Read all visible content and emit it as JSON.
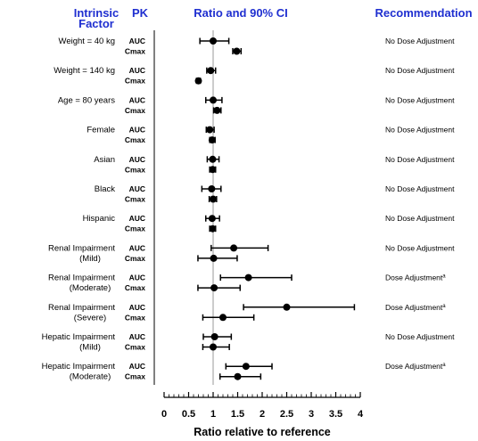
{
  "chart_data": {
    "type": "forest",
    "headers": {
      "factor": "Intrinsic Factor",
      "pk": "PK",
      "ratio": "Ratio and 90% CI",
      "recommendation": "Recommendation"
    },
    "xlabel": "Ratio relative to reference",
    "xlim": [
      0,
      4
    ],
    "xticks": [
      "0",
      "0.5",
      "1",
      "1.5",
      "2",
      "2.5",
      "3",
      "3.5",
      "4"
    ],
    "reference_line": 1,
    "rows": [
      {
        "factor": [
          "Weight = 40 kg"
        ],
        "recommendation": "No Dose Adjustment",
        "rec_mark": "",
        "pk": [
          {
            "param": "AUC",
            "ratio": 1.0,
            "ci": [
              0.73,
              1.32
            ]
          },
          {
            "param": "Cmax",
            "ratio": 1.48,
            "ci": [
              1.4,
              1.57
            ]
          }
        ]
      },
      {
        "factor": [
          "Weight = 140 kg"
        ],
        "recommendation": "No Dose Adjustment",
        "rec_mark": "",
        "pk": [
          {
            "param": "AUC",
            "ratio": 0.95,
            "ci": [
              0.87,
              1.05
            ]
          },
          {
            "param": "Cmax",
            "ratio": 0.7,
            "ci": [
              0.66,
              0.74
            ]
          }
        ]
      },
      {
        "factor": [
          "Age = 80 years"
        ],
        "recommendation": "No Dose Adjustment",
        "rec_mark": "",
        "pk": [
          {
            "param": "AUC",
            "ratio": 1.0,
            "ci": [
              0.85,
              1.18
            ]
          },
          {
            "param": "Cmax",
            "ratio": 1.08,
            "ci": [
              1.01,
              1.16
            ]
          }
        ]
      },
      {
        "factor": [
          "Female"
        ],
        "recommendation": "No Dose Adjustment",
        "rec_mark": "",
        "pk": [
          {
            "param": "AUC",
            "ratio": 0.93,
            "ci": [
              0.86,
              1.02
            ]
          },
          {
            "param": "Cmax",
            "ratio": 0.98,
            "ci": [
              0.93,
              1.04
            ]
          }
        ]
      },
      {
        "factor": [
          "Asian"
        ],
        "recommendation": "No Dose Adjustment",
        "rec_mark": "",
        "pk": [
          {
            "param": "AUC",
            "ratio": 0.99,
            "ci": [
              0.88,
              1.12
            ]
          },
          {
            "param": "Cmax",
            "ratio": 0.99,
            "ci": [
              0.93,
              1.05
            ]
          }
        ]
      },
      {
        "factor": [
          "Black"
        ],
        "recommendation": "No Dose Adjustment",
        "rec_mark": "",
        "pk": [
          {
            "param": "AUC",
            "ratio": 0.97,
            "ci": [
              0.77,
              1.16
            ]
          },
          {
            "param": "Cmax",
            "ratio": 1.0,
            "ci": [
              0.92,
              1.07
            ]
          }
        ]
      },
      {
        "factor": [
          "Hispanic"
        ],
        "recommendation": "No Dose Adjustment",
        "rec_mark": "",
        "pk": [
          {
            "param": "AUC",
            "ratio": 0.98,
            "ci": [
              0.85,
              1.13
            ]
          },
          {
            "param": "Cmax",
            "ratio": 0.99,
            "ci": [
              0.93,
              1.05
            ]
          }
        ]
      },
      {
        "factor": [
          "Renal Impairment",
          "(Mild)"
        ],
        "recommendation": "No Dose Adjustment",
        "rec_mark": "",
        "pk": [
          {
            "param": "AUC",
            "ratio": 1.42,
            "ci": [
              0.96,
              2.12
            ]
          },
          {
            "param": "Cmax",
            "ratio": 1.01,
            "ci": [
              0.69,
              1.49
            ]
          }
        ]
      },
      {
        "factor": [
          "Renal Impairment",
          "(Moderate)"
        ],
        "recommendation": "Dose Adjustment",
        "rec_mark": "a",
        "pk": [
          {
            "param": "AUC",
            "ratio": 1.72,
            "ci": [
              1.15,
              2.6
            ]
          },
          {
            "param": "Cmax",
            "ratio": 1.02,
            "ci": [
              0.69,
              1.55
            ]
          }
        ]
      },
      {
        "factor": [
          "Renal Impairment",
          "(Severe)"
        ],
        "recommendation": "Dose Adjustment",
        "rec_mark": "a",
        "pk": [
          {
            "param": "AUC",
            "ratio": 2.5,
            "ci": [
              1.62,
              3.88
            ]
          },
          {
            "param": "Cmax",
            "ratio": 1.2,
            "ci": [
              0.79,
              1.83
            ]
          }
        ]
      },
      {
        "factor": [
          "Hepatic Impairment",
          "(Mild)"
        ],
        "recommendation": "No Dose Adjustment",
        "rec_mark": "",
        "pk": [
          {
            "param": "AUC",
            "ratio": 1.03,
            "ci": [
              0.8,
              1.37
            ]
          },
          {
            "param": "Cmax",
            "ratio": 1.0,
            "ci": [
              0.79,
              1.33
            ]
          }
        ]
      },
      {
        "factor": [
          "Hepatic Impairment",
          "(Moderate)"
        ],
        "recommendation": "Dose Adjustment",
        "rec_mark": "a",
        "pk": [
          {
            "param": "AUC",
            "ratio": 1.67,
            "ci": [
              1.26,
              2.2
            ]
          },
          {
            "param": "Cmax",
            "ratio": 1.5,
            "ci": [
              1.14,
              1.97
            ]
          }
        ]
      }
    ]
  }
}
